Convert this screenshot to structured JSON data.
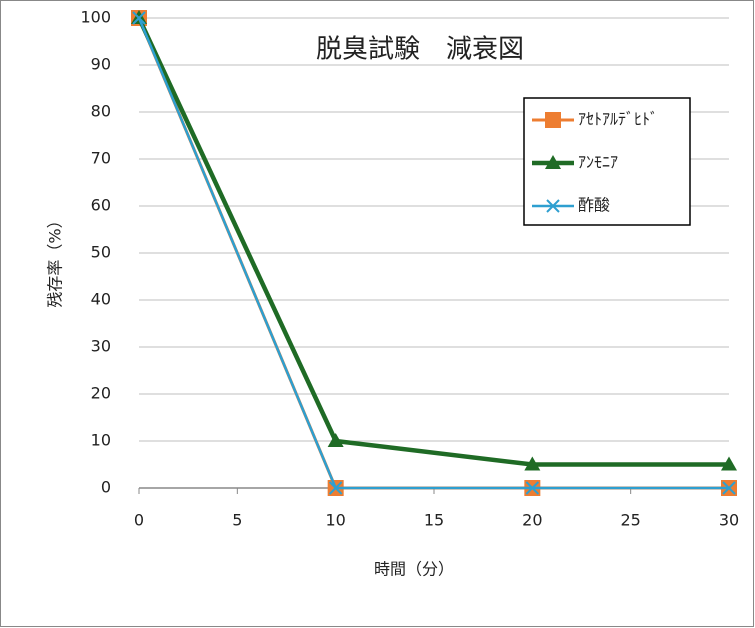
{
  "chart_data": {
    "type": "line",
    "title": "脱臭試験　減衰図",
    "x_label": "時間（分）",
    "y_label": "残存率（%）",
    "x": [
      0,
      10,
      20,
      30
    ],
    "series": [
      {
        "name": "ｱｾﾄｱﾙﾃﾞﾋﾄﾞ",
        "color": "#ed7d31",
        "marker": "square",
        "values": [
          100,
          0,
          0,
          0
        ]
      },
      {
        "name": "ｱﾝﾓﾆｱ",
        "color": "#1f6b25",
        "marker": "triangle",
        "values": [
          100,
          10,
          5,
          5
        ]
      },
      {
        "name": "酢酸",
        "color": "#2e9fd0",
        "marker": "x",
        "values": [
          100,
          0,
          0,
          0
        ]
      }
    ],
    "xlim": [
      0,
      30
    ],
    "xticks": [
      0,
      5,
      10,
      15,
      20,
      25,
      30
    ],
    "ylim": [
      0,
      100
    ],
    "yticks": [
      0,
      10,
      20,
      30,
      40,
      50,
      60,
      70,
      80,
      90,
      100
    ],
    "grid": true
  }
}
